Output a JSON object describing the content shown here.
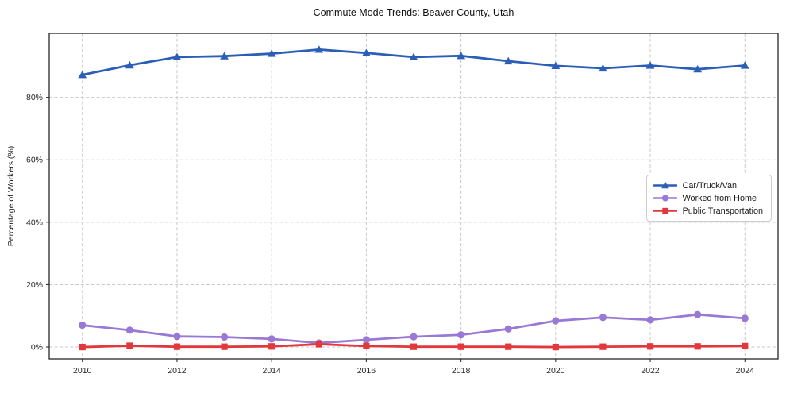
{
  "title": "Commute Mode Trends: Beaver County, Utah",
  "chart_data": {
    "type": "line",
    "title": "Commute Mode Trends: Beaver County, Utah",
    "xlabel": "",
    "ylabel": "Percentage of Workers (%)",
    "x": [
      2010,
      2011,
      2012,
      2013,
      2014,
      2015,
      2016,
      2017,
      2018,
      2019,
      2020,
      2021,
      2022,
      2023,
      2024
    ],
    "series": [
      {
        "name": "Car/Truck/Van",
        "color": "#2b5fb7",
        "marker": "triangle",
        "values": [
          87.2,
          90.3,
          92.9,
          93.2,
          94.0,
          95.3,
          94.2,
          92.9,
          93.3,
          91.6,
          90.1,
          89.3,
          90.2,
          89.0,
          90.2
        ]
      },
      {
        "name": "Worked from Home",
        "color": "#9a79d6",
        "marker": "circle",
        "values": [
          7.0,
          5.4,
          3.4,
          3.2,
          2.6,
          1.3,
          2.3,
          3.3,
          3.9,
          5.8,
          8.4,
          9.5,
          8.7,
          10.4,
          9.2
        ]
      },
      {
        "name": "Public Transportation",
        "color": "#e2383c",
        "marker": "square",
        "values": [
          0.0,
          0.4,
          0.1,
          0.1,
          0.2,
          0.9,
          0.3,
          0.1,
          0.1,
          0.1,
          0.0,
          0.1,
          0.2,
          0.2,
          0.3
        ]
      }
    ],
    "x_ticks": [
      2010,
      2012,
      2014,
      2016,
      2018,
      2020,
      2022,
      2024
    ],
    "y_ticks": [
      0,
      20,
      40,
      60,
      80
    ],
    "y_tick_suffix": "%",
    "xlim": [
      2009.3,
      2024.7
    ],
    "ylim": [
      -3.8,
      100.5
    ],
    "grid": true,
    "legend_position": "center-right"
  }
}
